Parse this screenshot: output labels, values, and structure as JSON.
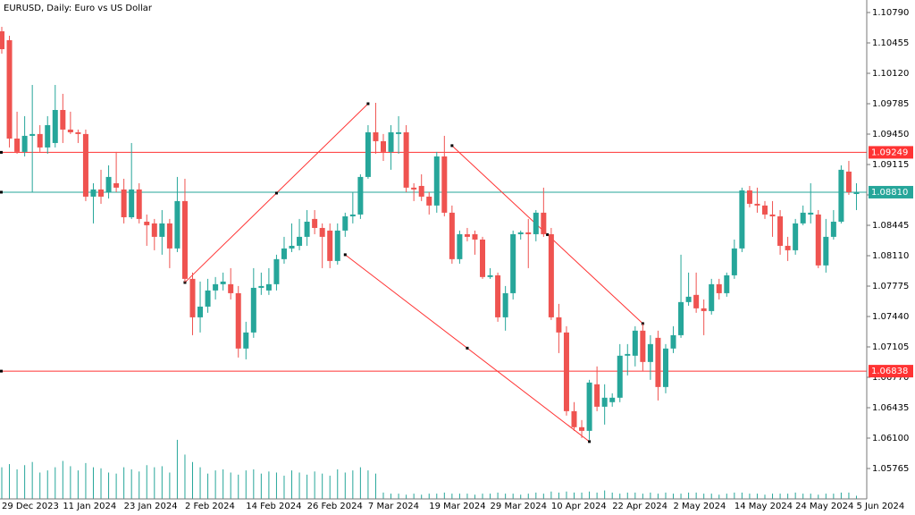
{
  "chart_data": {
    "type": "candlestick",
    "title": "EURUSD, Daily:  Euro vs US Dollar",
    "categories": [
      "29 Dec 2023",
      null,
      null,
      null,
      null,
      null,
      null,
      null,
      "11 Jan 2024",
      null,
      null,
      null,
      null,
      null,
      null,
      null,
      "23 Jan 2024",
      null,
      null,
      null,
      null,
      null,
      null,
      null,
      "2 Feb 2024",
      null,
      null,
      null,
      null,
      null,
      null,
      null,
      "14 Feb 2024",
      null,
      null,
      null,
      null,
      null,
      null,
      null,
      "26 Feb 2024",
      null,
      null,
      null,
      null,
      null,
      null,
      null,
      "7 Mar 2024",
      null,
      null,
      null,
      null,
      null,
      null,
      null,
      "19 Mar 2024",
      null,
      null,
      null,
      null,
      null,
      null,
      null,
      "29 Mar 2024",
      null,
      null,
      null,
      null,
      null,
      null,
      null,
      "10 Apr 2024",
      null,
      null,
      null,
      null,
      null,
      null,
      null,
      "22 Apr 2024",
      null,
      null,
      null,
      null,
      null,
      null,
      null,
      "2 May 2024",
      null,
      null,
      null,
      null,
      null,
      null,
      null,
      "14 May 2024",
      null,
      null,
      null,
      null,
      null,
      null,
      null,
      "24 May 2024",
      null,
      null,
      null,
      null,
      null,
      null,
      null,
      "5 Jun 2024"
    ],
    "open": [
      1.10583,
      1.10485,
      1.09401,
      1.09254,
      1.09431,
      1.09451,
      1.09303,
      1.09352,
      1.09716,
      1.095,
      1.0947,
      1.09451,
      1.08761,
      1.0884,
      1.0881,
      1.08909,
      1.0884,
      1.08534,
      1.0884,
      1.08485,
      1.08466,
      1.08318,
      1.08466,
      1.0819,
      1.08712,
      1.07855,
      1.07431,
      1.07549,
      1.07727,
      1.07796,
      1.07796,
      1.07697,
      1.07087,
      1.07264,
      1.07756,
      1.07727,
      1.07796,
      1.08072,
      1.0819,
      1.08219,
      1.08318,
      1.08515,
      1.08416,
      1.08387,
      1.08052,
      1.08387,
      1.08544,
      1.08564,
      1.08978,
      1.0947,
      1.09372,
      1.09254,
      1.09451,
      1.0947,
      1.0886,
      1.08879,
      1.08761,
      1.08663,
      1.09204,
      1.08584,
      1.08072,
      1.08347,
      1.08347,
      1.08288,
      1.07875,
      1.07894,
      1.07431,
      1.07697,
      1.08347,
      1.08367,
      1.08347,
      1.08584,
      1.08347,
      1.07431,
      1.07264,
      1.06397,
      1.0622,
      1.0618,
      1.06693,
      1.06446,
      1.06496,
      1.06545,
      1.07008,
      1.07008,
      1.07284,
      1.06939,
      1.07205,
      1.06663,
      1.07087,
      1.07234,
      1.07599,
      1.07678,
      1.0753,
      1.075,
      1.07796,
      1.07697,
      1.07894,
      1.0819,
      1.0883,
      1.08682,
      1.08663,
      1.08564,
      1.08544,
      1.08219,
      1.0817,
      1.08466,
      1.08564,
      1.08564,
      1.08003,
      1.08318,
      1.08485,
      1.09037,
      1.0879
    ],
    "high": [
      1.10633,
      1.10534,
      1.09697,
      1.09648,
      1.09992,
      1.09549,
      1.09648,
      1.09992,
      1.09894,
      1.09697,
      1.095,
      1.095,
      1.08909,
      1.09057,
      1.09106,
      1.09254,
      1.08958,
      1.09352,
      1.08909,
      1.08564,
      1.08515,
      1.08613,
      1.08515,
      1.08978,
      1.08958,
      1.07924,
      1.07825,
      1.07855,
      1.07875,
      1.07924,
      1.07973,
      1.07776,
      1.07382,
      1.07973,
      1.07924,
      1.07973,
      1.08121,
      1.08318,
      1.08466,
      1.08515,
      1.08613,
      1.08613,
      1.08466,
      1.08466,
      1.08466,
      1.08584,
      1.0881,
      1.09007,
      1.09549,
      1.09795,
      1.09451,
      1.09549,
      1.09648,
      1.09549,
      1.08909,
      1.09007,
      1.0881,
      1.09254,
      1.09431,
      1.08663,
      1.08387,
      1.08416,
      1.08387,
      1.08318,
      1.07973,
      1.07924,
      1.07776,
      1.08387,
      1.08387,
      1.08515,
      1.08613,
      1.0886,
      1.08416,
      1.07579,
      1.07333,
      1.06496,
      1.06299,
      1.06742,
      1.0689,
      1.06693,
      1.06594,
      1.07136,
      1.07136,
      1.07333,
      1.07362,
      1.07234,
      1.07284,
      1.07136,
      1.07333,
      1.08121,
      1.07924,
      1.07924,
      1.07628,
      1.07855,
      1.07855,
      1.07924,
      1.08288,
      1.0886,
      1.08879,
      1.0886,
      1.08712,
      1.08712,
      1.08613,
      1.08318,
      1.08515,
      1.08663,
      1.08909,
      1.08613,
      1.08515,
      1.08613,
      1.09106,
      1.09155,
      1.08909
    ],
    "low": [
      1.10337,
      1.09303,
      1.09234,
      1.09204,
      1.0881,
      1.09254,
      1.09234,
      1.09303,
      1.09352,
      1.09451,
      1.09352,
      1.08712,
      1.08466,
      1.08682,
      1.08741,
      1.0881,
      1.08466,
      1.08515,
      1.08466,
      1.08219,
      1.0817,
      1.08121,
      1.07973,
      1.0815,
      1.07815,
      1.07234,
      1.07264,
      1.07481,
      1.07628,
      1.07727,
      1.07628,
      1.06988,
      1.06968,
      1.07205,
      1.07678,
      1.07678,
      1.07727,
      1.08022,
      1.0815,
      1.0817,
      1.08219,
      1.08347,
      1.07973,
      1.07973,
      1.08012,
      1.08318,
      1.08466,
      1.08515,
      1.08958,
      1.09234,
      1.09155,
      1.09057,
      1.09234,
      1.0881,
      1.08712,
      1.08712,
      1.08564,
      1.08584,
      1.08544,
      1.08022,
      1.08022,
      1.08269,
      1.08121,
      1.07855,
      1.07855,
      1.07382,
      1.07284,
      1.07628,
      1.08288,
      1.07973,
      1.08269,
      1.08318,
      1.07402,
      1.07037,
      1.06348,
      1.0618,
      1.06102,
      1.06082,
      1.06397,
      1.06249,
      1.06446,
      1.06496,
      1.06791,
      1.0689,
      1.0684,
      1.06742,
      1.06515,
      1.06594,
      1.07037,
      1.07205,
      1.07559,
      1.07481,
      1.07234,
      1.07461,
      1.07628,
      1.07658,
      1.07855,
      1.0815,
      1.08643,
      1.08584,
      1.08515,
      1.08318,
      1.08121,
      1.08052,
      1.08121,
      1.08446,
      1.08466,
      1.07973,
      1.07924,
      1.08288,
      1.08466,
      1.08781,
      1.08613
    ],
    "close": [
      1.10386,
      1.09401,
      1.09254,
      1.09431,
      1.09451,
      1.09303,
      1.09549,
      1.09716,
      1.095,
      1.0947,
      1.09451,
      1.08761,
      1.0884,
      1.08761,
      1.08978,
      1.0886,
      1.08534,
      1.0884,
      1.08515,
      1.08446,
      1.08318,
      1.08466,
      1.0819,
      1.08712,
      1.07855,
      1.07431,
      1.07549,
      1.07727,
      1.07796,
      1.07825,
      1.07697,
      1.07087,
      1.07264,
      1.07756,
      1.07776,
      1.07796,
      1.08072,
      1.0819,
      1.08219,
      1.08318,
      1.08485,
      1.08416,
      1.08318,
      1.08052,
      1.08387,
      1.08544,
      1.08564,
      1.08978,
      1.0947,
      1.09372,
      1.09254,
      1.0947,
      1.0947,
      1.0886,
      1.0884,
      1.08761,
      1.08663,
      1.09204,
      1.08584,
      1.08072,
      1.08347,
      1.08318,
      1.08288,
      1.07875,
      1.07894,
      1.07431,
      1.07697,
      1.08347,
      1.08367,
      1.08347,
      1.08584,
      1.08347,
      1.07431,
      1.07264,
      1.06397,
      1.0622,
      1.0618,
      1.06712,
      1.06446,
      1.06545,
      1.06545,
      1.07008,
      1.07027,
      1.07284,
      1.06939,
      1.07136,
      1.06663,
      1.07087,
      1.07234,
      1.07599,
      1.07658,
      1.0753,
      1.075,
      1.07796,
      1.07697,
      1.07894,
      1.0819,
      1.0883,
      1.08682,
      1.08663,
      1.08564,
      1.08544,
      1.08219,
      1.0817,
      1.08466,
      1.08584,
      1.08584,
      1.08003,
      1.08318,
      1.08485,
      1.09057,
      1.0881,
      1.0881
    ],
    "volume": [
      30,
      33,
      28,
      32,
      35,
      25,
      27,
      30,
      36,
      31,
      27,
      34,
      30,
      29,
      25,
      24,
      30,
      28,
      26,
      32,
      30,
      31,
      25,
      56,
      42,
      35,
      30,
      24,
      27,
      28,
      25,
      23,
      27,
      28,
      24,
      26,
      25,
      22,
      27,
      25,
      23,
      26,
      24,
      22,
      28,
      25,
      27,
      30,
      27,
      24,
      6,
      5,
      5,
      4,
      5,
      4,
      5,
      5,
      6,
      5,
      5,
      5,
      4,
      5,
      5,
      6,
      5,
      5,
      4,
      5,
      6,
      5,
      7,
      6,
      7,
      6,
      6,
      7,
      6,
      8,
      6,
      5,
      6,
      6,
      5,
      6,
      5,
      6,
      5,
      5,
      6,
      6,
      5,
      5,
      4,
      5,
      6,
      6,
      5,
      5,
      4,
      5,
      5,
      5,
      6,
      5,
      5,
      4,
      5,
      5,
      6,
      6,
      3
    ],
    "up_color": "#26a69a",
    "down_color": "#ef5350",
    "volume_color": "#26a69a",
    "ylim": [
      1.0543,
      1.10928
    ],
    "y2lim": [
      0,
      100
    ],
    "yticks": [
      {
        "value": 1.1079,
        "label": "1.10790"
      },
      {
        "value": 1.10455,
        "label": "1.10455"
      },
      {
        "value": 1.1012,
        "label": "1.10120"
      },
      {
        "value": 1.09785,
        "label": "1.09785"
      },
      {
        "value": 1.0945,
        "label": "1.09450"
      },
      {
        "value": 1.09115,
        "label": "1.09115"
      },
      {
        "value": 1.0878,
        "label": "1.08780"
      },
      {
        "value": 1.08445,
        "label": "1.08445"
      },
      {
        "value": 1.0811,
        "label": "1.08110"
      },
      {
        "value": 1.07775,
        "label": "1.07775"
      },
      {
        "value": 1.0744,
        "label": "1.07440"
      },
      {
        "value": 1.07105,
        "label": "1.07105"
      },
      {
        "value": 1.0677,
        "label": "1.06770"
      },
      {
        "value": 1.06435,
        "label": "1.06435"
      },
      {
        "value": 1.061,
        "label": "1.06100"
      },
      {
        "value": 1.05765,
        "label": "1.05765"
      }
    ],
    "hlines": [
      {
        "value": 1.09249,
        "color": "#ff3333"
      },
      {
        "value": 1.0881,
        "label": "1.08810",
        "color": "#26a69a"
      },
      {
        "value": 1.06838,
        "color": "#ff3333"
      }
    ],
    "trendlines": [
      {
        "points": [
          [
            24,
            1.07815
          ],
          [
            48,
            1.09785
          ]
        ],
        "color": "#ff3333"
      },
      {
        "points": [
          [
            45,
            1.08121
          ],
          [
            77,
            1.06062
          ]
        ],
        "color": "#ff3333"
      },
      {
        "points": [
          [
            59,
            1.09323
          ],
          [
            84,
            1.07362
          ]
        ],
        "color": "#ff3333"
      }
    ],
    "grid": false
  }
}
